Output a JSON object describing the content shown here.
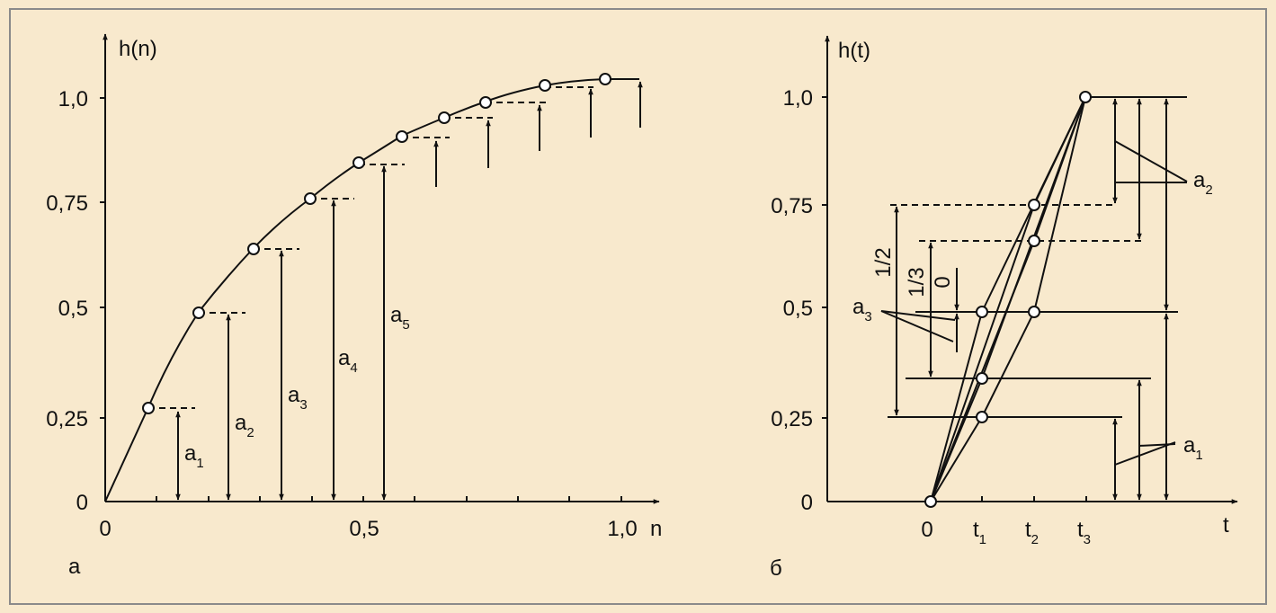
{
  "panels": {
    "a": {
      "label": "а",
      "y_axis_label": "h(n)",
      "x_axis_label": "n",
      "y_ticks": [
        "0",
        "0,25",
        "0,5",
        "0,75",
        "1,0"
      ],
      "x_ticks": [
        "0",
        "0,5",
        "1,0"
      ],
      "annotations": [
        "a",
        "a",
        "a",
        "a",
        "a"
      ],
      "annotation_subscripts": [
        "1",
        "2",
        "3",
        "4",
        "5"
      ]
    },
    "b": {
      "label": "б",
      "y_axis_label": "h(t)",
      "x_axis_label": "t",
      "y_ticks": [
        "0",
        "0,25",
        "0,5",
        "0,75",
        "1,0"
      ],
      "x_ticks": [
        "0",
        "t",
        "t",
        "t"
      ],
      "x_tick_subscripts": [
        "",
        "1",
        "2",
        "3"
      ],
      "fraction_labels": [
        "1/2",
        "1/3",
        "0"
      ],
      "annotations": [
        "a",
        "a",
        "a"
      ],
      "annotation_subscripts": [
        "1",
        "2",
        "3"
      ]
    }
  },
  "colors": {
    "background": "#f8e9cd",
    "border": "#8a8a8a",
    "ink": "#111111"
  }
}
